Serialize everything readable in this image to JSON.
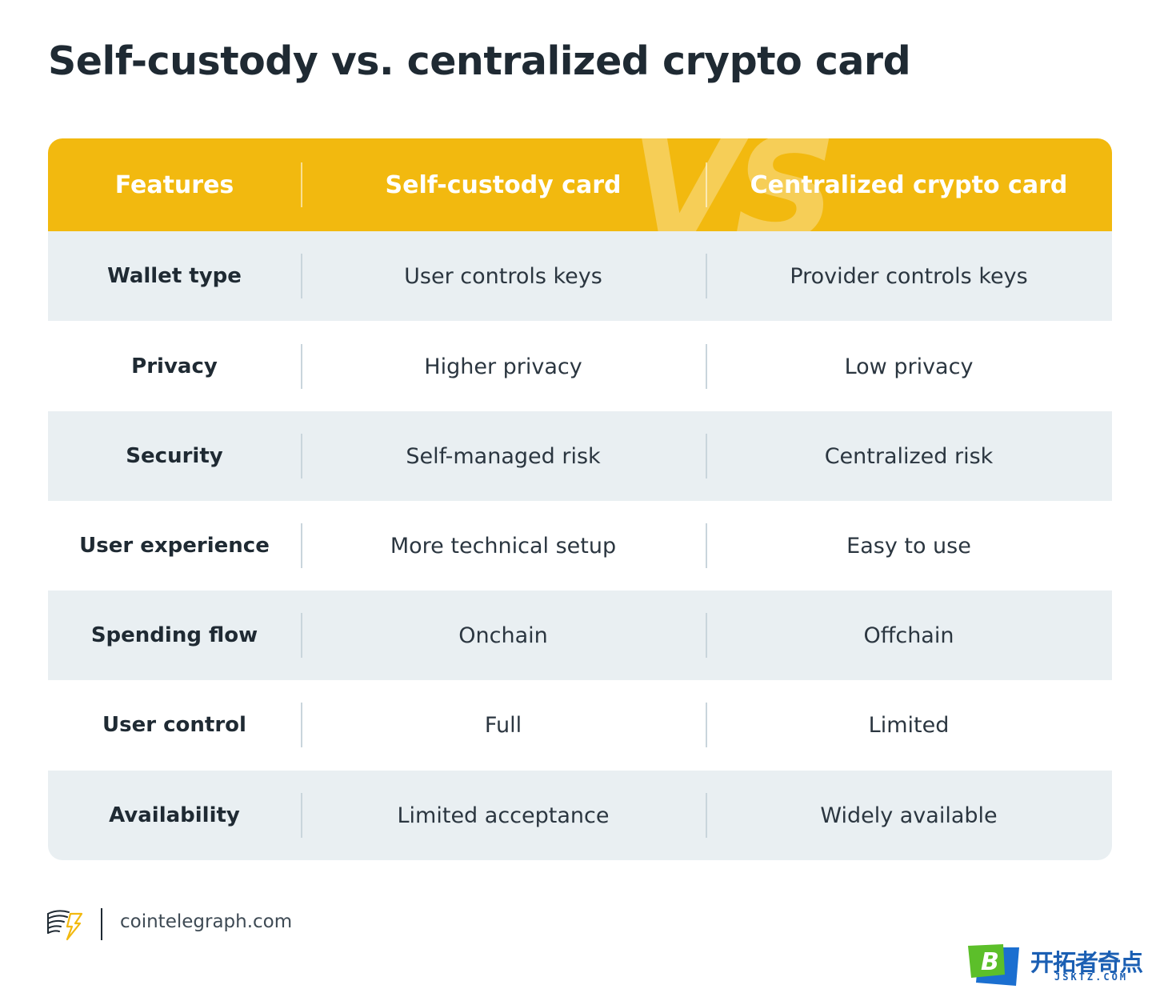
{
  "title": "Self-custody vs. centralized crypto card",
  "header": {
    "watermark": "VS",
    "columns": [
      "Features",
      "Self-custody card",
      "Centralized crypto card"
    ]
  },
  "rows": [
    {
      "feature": "Wallet type",
      "self_custody": "User controls keys",
      "centralized": "Provider controls keys"
    },
    {
      "feature": "Privacy",
      "self_custody": "Higher privacy",
      "centralized": "Low privacy"
    },
    {
      "feature": "Security",
      "self_custody": "Self-managed risk",
      "centralized": "Centralized risk"
    },
    {
      "feature": "User experience",
      "self_custody": "More technical setup",
      "centralized": "Easy to use"
    },
    {
      "feature": "Spending flow",
      "self_custody": "Onchain",
      "centralized": "Offchain"
    },
    {
      "feature": "User control",
      "self_custody": "Full",
      "centralized": "Limited"
    },
    {
      "feature": "Availability",
      "self_custody": "Limited acceptance",
      "centralized": "Widely available"
    }
  ],
  "footer": {
    "logo_icon": "cointelegraph-logo-icon",
    "site": "cointelegraph.com"
  },
  "watermark_brand": {
    "logo_icon": "jsktz-logo-icon",
    "name_cn": "开拓者奇点",
    "domain": "JSKTZ.COM"
  },
  "colors": {
    "header_bg": "#f2b90f",
    "shaded_row": "#e9eff2",
    "text_dark": "#1f2a33",
    "brand_blue": "#1b5fb3",
    "brand_green": "#5cbf2a"
  }
}
